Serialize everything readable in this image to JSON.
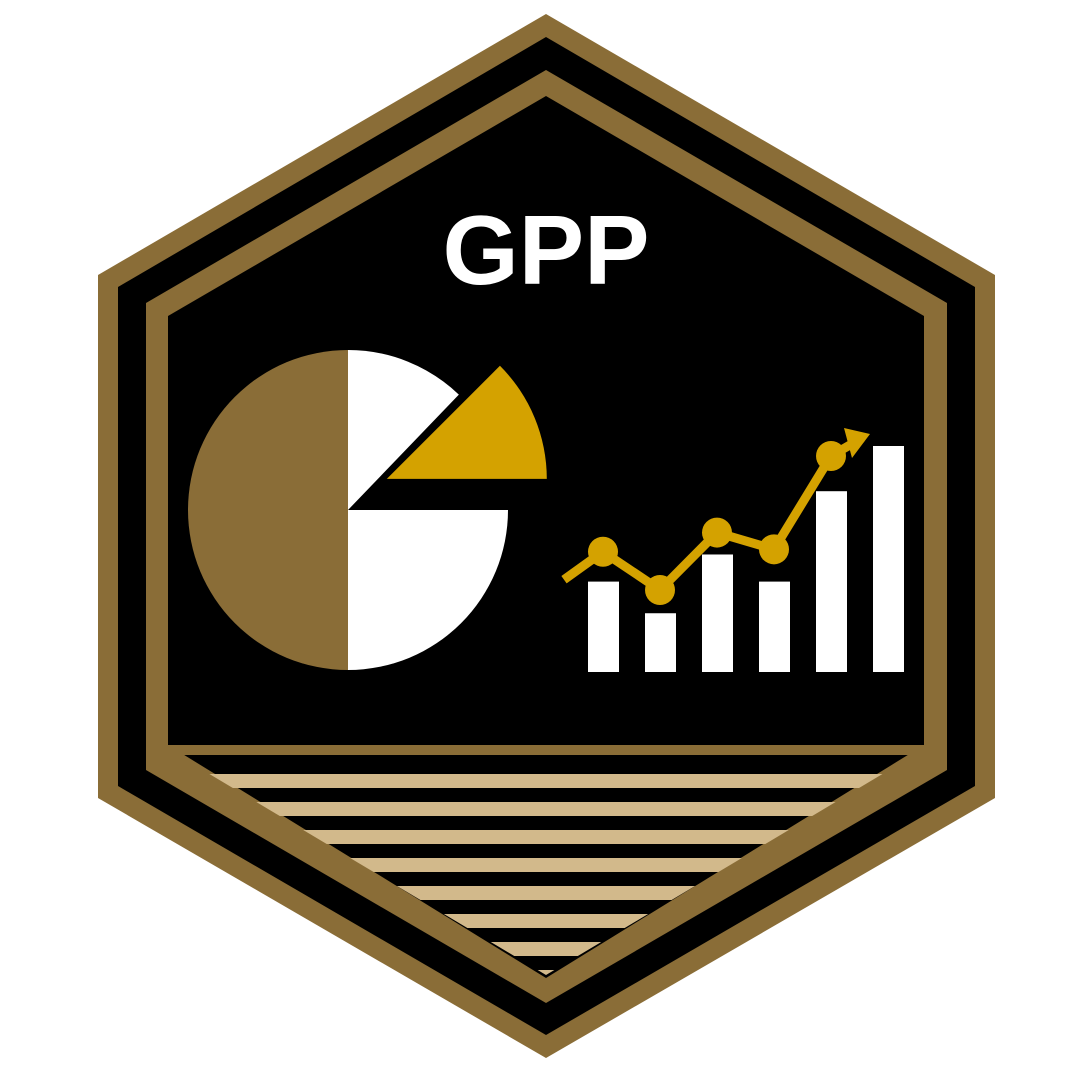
{
  "badge": {
    "title": "GPP",
    "colors": {
      "bronze": "#8a6d37",
      "gold": "#d4a200",
      "black": "#000000",
      "white": "#ffffff",
      "sand": "#d2b98b",
      "title": "#ffffff"
    },
    "pie_icon": {
      "slices": [
        {
          "name": "bronze-half",
          "share": 0.5,
          "color": "bronze"
        },
        {
          "name": "white-lower-quarter",
          "share": 0.25,
          "color": "white"
        },
        {
          "name": "gold-exploded-wedge",
          "share": 0.125,
          "color": "gold"
        },
        {
          "name": "white-upper-wedge",
          "share": 0.125,
          "color": "white"
        }
      ]
    },
    "bar_icon": {
      "bar_levels": [
        0.4,
        0.26,
        0.52,
        0.4,
        0.8,
        1.0
      ],
      "trend_levels": [
        0.52,
        0.36,
        0.6,
        0.53,
        0.92
      ],
      "trend_direction": "up",
      "bar_color": "white",
      "trend_color": "gold"
    }
  }
}
